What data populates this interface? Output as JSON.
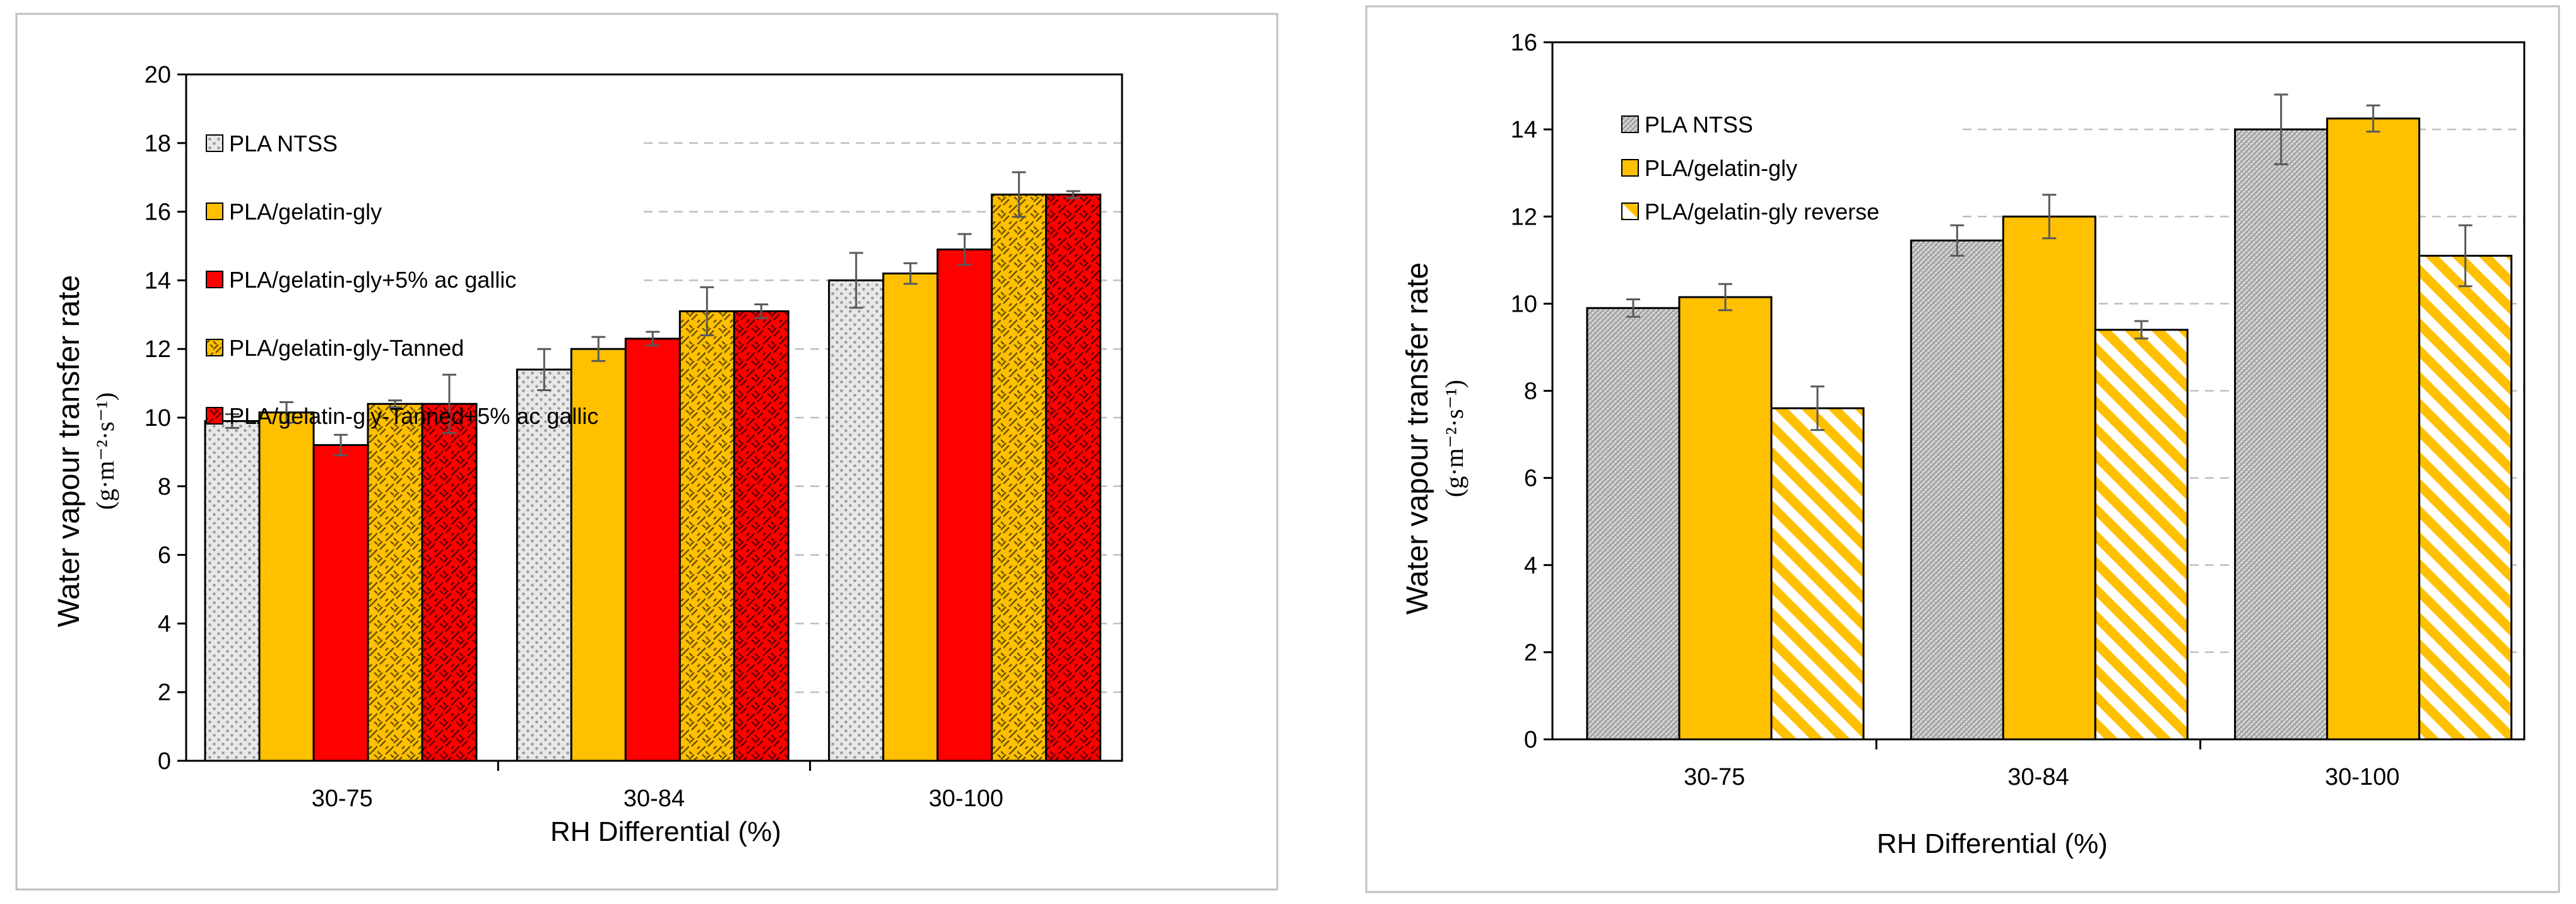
{
  "chart_data": [
    {
      "type": "bar",
      "title": "",
      "xlabel": "RH Differential (%)",
      "ylabel": "Water vapour transfer rate",
      "ylabel_units": "(g·m⁻²·s⁻¹)",
      "ylim": [
        0,
        20
      ],
      "yticks": [
        0,
        2,
        4,
        6,
        8,
        10,
        12,
        14,
        16,
        18,
        20
      ],
      "grid": "dashed horizontal",
      "legend_position": "top-left",
      "categories": [
        "30-75",
        "30-84",
        "30-100"
      ],
      "series": [
        {
          "name": "PLA NTSS",
          "values": [
            9.9,
            11.4,
            14.0
          ],
          "errors": [
            0.2,
            0.6,
            0.8
          ],
          "color": "#d9d9d9",
          "pattern": "dots"
        },
        {
          "name": "PLA/gelatin-gly",
          "values": [
            10.15,
            12.0,
            14.2
          ],
          "errors": [
            0.3,
            0.35,
            0.3
          ],
          "color": "#ffc000",
          "pattern": "solid"
        },
        {
          "name": "PLA/gelatin-gly+5% ac gallic",
          "values": [
            9.2,
            12.3,
            14.9
          ],
          "errors": [
            0.3,
            0.2,
            0.45
          ],
          "color": "#ff0000",
          "pattern": "solid"
        },
        {
          "name": "PLA/gelatin-gly-Tanned",
          "values": [
            10.4,
            13.1,
            16.5
          ],
          "errors": [
            0.1,
            0.7,
            0.65
          ],
          "color": "#ffc000",
          "pattern": "weave"
        },
        {
          "name": "PLA/gelatin-gly-Tanned+5% ac gallic",
          "values": [
            10.4,
            13.1,
            16.5
          ],
          "errors": [
            0.85,
            0.2,
            0.1
          ],
          "color": "#ff0000",
          "pattern": "weave"
        }
      ]
    },
    {
      "type": "bar",
      "title": "",
      "xlabel": "RH Differential (%)",
      "ylabel": "Water vapour transfer rate",
      "ylabel_units": "(g·m⁻²·s⁻¹)",
      "ylim": [
        0,
        16
      ],
      "yticks": [
        0,
        2,
        4,
        6,
        8,
        10,
        12,
        14,
        16
      ],
      "grid": "dashed horizontal",
      "legend_position": "top-left",
      "categories": [
        "30-75",
        "30-84",
        "30-100"
      ],
      "series": [
        {
          "name": "PLA NTSS",
          "values": [
            9.9,
            11.45,
            14.0
          ],
          "errors": [
            0.2,
            0.35,
            0.8
          ],
          "color": "#bfbfbf",
          "pattern": "fine-lines"
        },
        {
          "name": "PLA/gelatin-gly",
          "values": [
            10.15,
            12.0,
            14.25
          ],
          "errors": [
            0.3,
            0.5,
            0.3
          ],
          "color": "#ffc000",
          "pattern": "solid"
        },
        {
          "name": "PLA/gelatin-gly reverse",
          "values": [
            7.6,
            9.4,
            11.1
          ],
          "errors": [
            0.5,
            0.2,
            0.7
          ],
          "color": "#ffc000",
          "pattern": "diagonal"
        }
      ]
    }
  ]
}
